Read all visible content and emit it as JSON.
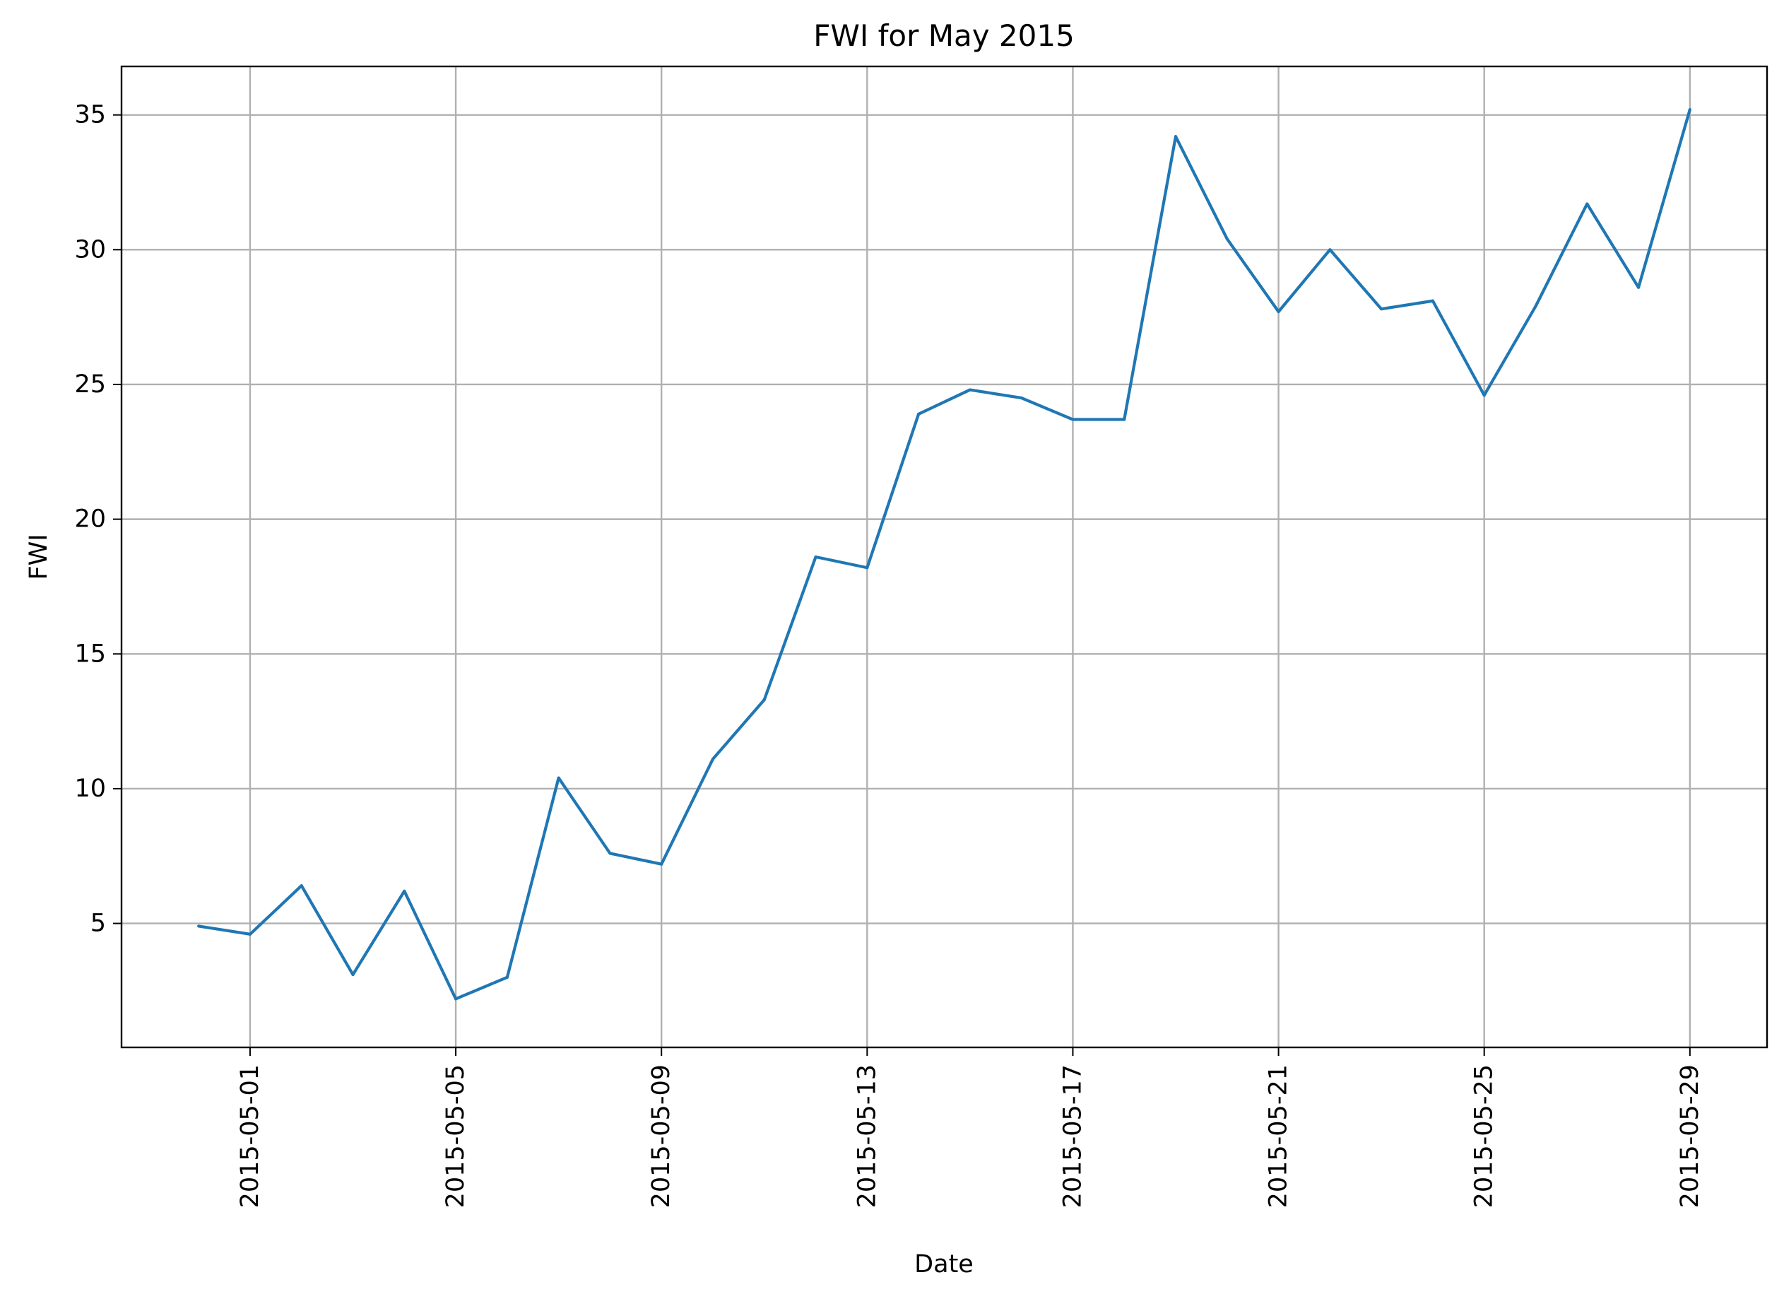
{
  "chart_data": {
    "type": "line",
    "title": "FWI for May 2015",
    "xlabel": "Date",
    "ylabel": "FWI",
    "grid": true,
    "x": [
      "2015-04-30",
      "2015-05-01",
      "2015-05-02",
      "2015-05-03",
      "2015-05-04",
      "2015-05-05",
      "2015-05-06",
      "2015-05-07",
      "2015-05-08",
      "2015-05-09",
      "2015-05-10",
      "2015-05-11",
      "2015-05-12",
      "2015-05-13",
      "2015-05-14",
      "2015-05-15",
      "2015-05-16",
      "2015-05-17",
      "2015-05-18",
      "2015-05-19",
      "2015-05-20",
      "2015-05-21",
      "2015-05-22",
      "2015-05-23",
      "2015-05-24",
      "2015-05-25",
      "2015-05-26",
      "2015-05-27",
      "2015-05-28",
      "2015-05-29"
    ],
    "xlim": [
      "2015-04-28T12:00",
      "2015-05-30T12:00"
    ],
    "xticks": [
      "2015-05-01",
      "2015-05-05",
      "2015-05-09",
      "2015-05-13",
      "2015-05-17",
      "2015-05-21",
      "2015-05-25",
      "2015-05-29"
    ],
    "ylim": [
      0.4,
      36.8
    ],
    "yticks": [
      5,
      10,
      15,
      20,
      25,
      30,
      35
    ],
    "series": [
      {
        "color": "#1f77b4",
        "values": [
          4.9,
          4.6,
          6.4,
          3.1,
          6.2,
          2.2,
          3.0,
          10.4,
          7.6,
          7.2,
          11.1,
          13.3,
          18.6,
          18.2,
          23.9,
          24.8,
          24.5,
          23.7,
          23.7,
          34.2,
          30.4,
          27.7,
          30.0,
          27.8,
          28.1,
          24.6,
          27.9,
          31.7,
          28.6,
          35.2
        ]
      }
    ]
  }
}
